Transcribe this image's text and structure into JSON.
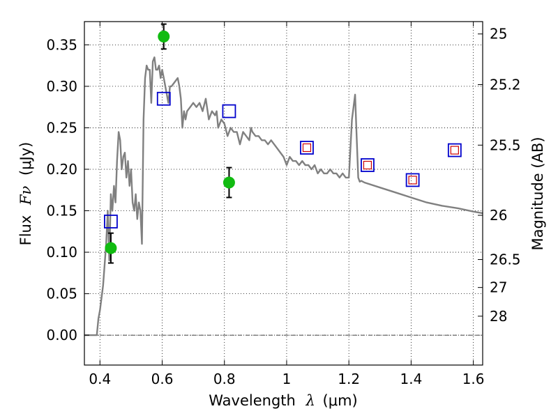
{
  "chart_data": {
    "type": "line",
    "title": "",
    "xlabel": {
      "prefix": "Wavelength",
      "symbol": "λ",
      "unit": "(μm)"
    },
    "ylabel": {
      "prefix": "Flux",
      "symbol": "Fν",
      "unit": "(μJy)"
    },
    "y2label": "Magnitude (AB)",
    "xlim": [
      0.35,
      1.63
    ],
    "ylim": [
      -0.036,
      0.378
    ],
    "grid": true,
    "x_ticks": [
      0.4,
      0.6,
      0.8,
      1.0,
      1.2,
      1.4,
      1.6
    ],
    "x_tick_labels": [
      "0.4",
      "0.6",
      "0.8",
      "1",
      "1.2",
      "1.4",
      "1.6"
    ],
    "y_ticks": [
      0.0,
      0.05,
      0.1,
      0.15,
      0.2,
      0.25,
      0.3,
      0.35
    ],
    "y_tick_labels": [
      "0.00",
      "0.05",
      "0.10",
      "0.15",
      "0.20",
      "0.25",
      "0.30",
      "0.35"
    ],
    "mag_ticks": [
      {
        "label": "25",
        "flux": 0.3631
      },
      {
        "label": "25.2",
        "flux": 0.302
      },
      {
        "label": "25.5",
        "flux": 0.2291
      },
      {
        "label": "26",
        "flux": 0.1445
      },
      {
        "label": "26.5",
        "flux": 0.0912
      },
      {
        "label": "27",
        "flux": 0.0575
      },
      {
        "label": "28",
        "flux": 0.0229
      }
    ],
    "series": [
      {
        "name": "model-sed",
        "kind": "line",
        "color": "#808080",
        "x": [
          0.35,
          0.39,
          0.395,
          0.4,
          0.41,
          0.42,
          0.425,
          0.43,
          0.435,
          0.44,
          0.445,
          0.45,
          0.455,
          0.46,
          0.465,
          0.47,
          0.475,
          0.48,
          0.485,
          0.49,
          0.495,
          0.5,
          0.505,
          0.51,
          0.515,
          0.52,
          0.525,
          0.53,
          0.535,
          0.54,
          0.545,
          0.55,
          0.555,
          0.56,
          0.565,
          0.57,
          0.575,
          0.58,
          0.585,
          0.59,
          0.595,
          0.6,
          0.605,
          0.61,
          0.615,
          0.62,
          0.625,
          0.63,
          0.64,
          0.65,
          0.655,
          0.66,
          0.665,
          0.67,
          0.675,
          0.68,
          0.69,
          0.7,
          0.71,
          0.72,
          0.73,
          0.74,
          0.75,
          0.76,
          0.77,
          0.775,
          0.78,
          0.79,
          0.8,
          0.81,
          0.82,
          0.83,
          0.84,
          0.85,
          0.86,
          0.87,
          0.88,
          0.885,
          0.89,
          0.9,
          0.91,
          0.92,
          0.93,
          0.94,
          0.95,
          0.96,
          0.97,
          0.98,
          0.99,
          1.0,
          1.01,
          1.02,
          1.03,
          1.04,
          1.05,
          1.06,
          1.07,
          1.08,
          1.09,
          1.1,
          1.11,
          1.12,
          1.13,
          1.14,
          1.15,
          1.16,
          1.17,
          1.18,
          1.19,
          1.2,
          1.21,
          1.22,
          1.225,
          1.23,
          1.235,
          1.24,
          1.245,
          1.25,
          1.3,
          1.35,
          1.4,
          1.45,
          1.5,
          1.55,
          1.6,
          1.63
        ],
        "y": [
          0.0,
          0.0,
          0.02,
          0.03,
          0.06,
          0.11,
          0.15,
          0.09,
          0.17,
          0.15,
          0.18,
          0.16,
          0.21,
          0.245,
          0.235,
          0.2,
          0.215,
          0.22,
          0.19,
          0.21,
          0.18,
          0.2,
          0.16,
          0.15,
          0.17,
          0.14,
          0.16,
          0.15,
          0.11,
          0.26,
          0.31,
          0.325,
          0.32,
          0.32,
          0.28,
          0.33,
          0.335,
          0.32,
          0.32,
          0.325,
          0.31,
          0.32,
          0.31,
          0.3,
          0.29,
          0.28,
          0.3,
          0.3,
          0.305,
          0.31,
          0.3,
          0.285,
          0.25,
          0.27,
          0.26,
          0.27,
          0.275,
          0.28,
          0.275,
          0.28,
          0.27,
          0.285,
          0.26,
          0.27,
          0.265,
          0.27,
          0.25,
          0.26,
          0.255,
          0.24,
          0.25,
          0.245,
          0.245,
          0.23,
          0.245,
          0.24,
          0.235,
          0.25,
          0.245,
          0.24,
          0.24,
          0.235,
          0.235,
          0.23,
          0.235,
          0.23,
          0.225,
          0.22,
          0.215,
          0.205,
          0.215,
          0.21,
          0.21,
          0.205,
          0.21,
          0.205,
          0.205,
          0.2,
          0.205,
          0.195,
          0.2,
          0.195,
          0.195,
          0.2,
          0.195,
          0.195,
          0.19,
          0.195,
          0.19,
          0.19,
          0.26,
          0.29,
          0.24,
          0.19,
          0.185,
          0.186,
          0.185,
          0.184,
          0.178,
          0.172,
          0.166,
          0.16,
          0.156,
          0.153,
          0.149,
          0.147
        ]
      },
      {
        "name": "observed-flux",
        "kind": "scatter-errorbar",
        "color": "#11bb11",
        "points": [
          {
            "x": 0.435,
            "y": 0.105,
            "err": 0.018
          },
          {
            "x": 0.605,
            "y": 0.36,
            "err": 0.015
          },
          {
            "x": 0.815,
            "y": 0.184,
            "err": 0.018
          }
        ]
      },
      {
        "name": "model-photometry",
        "kind": "open-square",
        "color": "#0000cc",
        "points": [
          {
            "x": 0.435,
            "y": 0.137
          },
          {
            "x": 0.605,
            "y": 0.285
          },
          {
            "x": 0.815,
            "y": 0.27
          },
          {
            "x": 1.065,
            "y": 0.226
          },
          {
            "x": 1.26,
            "y": 0.205
          },
          {
            "x": 1.405,
            "y": 0.187
          },
          {
            "x": 1.54,
            "y": 0.223
          }
        ]
      },
      {
        "name": "model-photometry-inner",
        "kind": "small-open-square",
        "color": "#cc0000",
        "points": [
          {
            "x": 1.065,
            "y": 0.226
          },
          {
            "x": 1.26,
            "y": 0.205
          },
          {
            "x": 1.405,
            "y": 0.187
          },
          {
            "x": 1.54,
            "y": 0.223
          }
        ]
      }
    ]
  }
}
